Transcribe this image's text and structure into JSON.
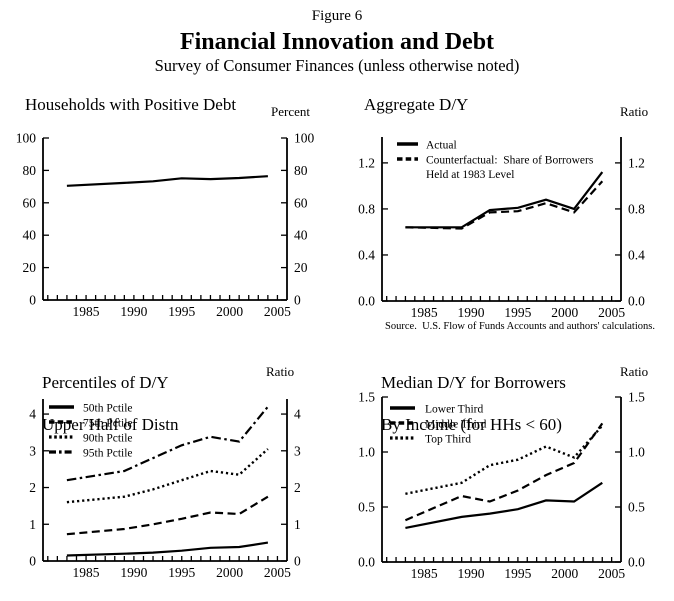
{
  "header": {
    "figure_label": "Figure 6",
    "title": "Financial Innovation and Debt",
    "subtitle": "Survey of Consumer Finances (unless otherwise noted)"
  },
  "colors": {
    "background": "#ffffff",
    "line": "#000000",
    "text": "#000000"
  },
  "chart_data": [
    {
      "type": "line",
      "title": "Households with Positive Debt",
      "title_lines": [
        "Households with Positive Debt"
      ],
      "unit": "Percent",
      "x": [
        1983,
        1989,
        1992,
        1995,
        1998,
        2001,
        2004
      ],
      "xlim": [
        1980.5,
        2006
      ],
      "xtick_label_years": [
        1985,
        1990,
        1995,
        2000,
        2005
      ],
      "ylim": [
        0,
        100
      ],
      "ytick_values": [
        0,
        20,
        40,
        60,
        80,
        100
      ],
      "ytick_labels": [
        "0",
        "20",
        "40",
        "60",
        "80",
        "100"
      ],
      "grid": false,
      "series": [
        {
          "style": "solid",
          "values": [
            70.5,
            72.3,
            73.3,
            75.1,
            74.6,
            75.3,
            76.4
          ]
        }
      ]
    },
    {
      "type": "line",
      "title": "Aggregate D/Y",
      "title_lines": [
        "Aggregate D/Y"
      ],
      "unit": "Ratio",
      "source": "Source.  U.S. Flow of Funds Accounts and authors' calculations.",
      "x": [
        1983,
        1989,
        1992,
        1995,
        1998,
        2001,
        2004
      ],
      "xlim": [
        1980.5,
        2006
      ],
      "xtick_label_years": [
        1985,
        1990,
        1995,
        2000,
        2005
      ],
      "ylim": [
        0,
        1.425
      ],
      "ytick_values": [
        0,
        0.4,
        0.8,
        1.2
      ],
      "ytick_labels": [
        "0.0",
        "0.4",
        "0.8",
        "1.2"
      ],
      "grid": false,
      "legend_position": "top-left",
      "series": [
        {
          "name": "Actual",
          "name_lines": [
            "Actual"
          ],
          "style": "solid",
          "values": [
            0.64,
            0.64,
            0.79,
            0.81,
            0.88,
            0.8,
            1.12
          ]
        },
        {
          "name": "Counterfactual:  Share of Borrowers Held at 1983 Level",
          "name_lines": [
            "Counterfactual:  Share of Borrowers",
            "Held at 1983 Level"
          ],
          "style": "dashed",
          "values": [
            0.64,
            0.63,
            0.77,
            0.78,
            0.85,
            0.77,
            1.04
          ]
        }
      ]
    },
    {
      "type": "line",
      "title": "Percentiles of D/Y Upper Half of Distn",
      "title_lines": [
        "Percentiles of D/Y",
        "Upper Half of Distn"
      ],
      "unit": "Ratio",
      "x": [
        1983,
        1989,
        1992,
        1995,
        1998,
        2001,
        2004
      ],
      "xlim": [
        1980.5,
        2006
      ],
      "xtick_label_years": [
        1985,
        1990,
        1995,
        2000,
        2005
      ],
      "ylim": [
        0,
        4.41
      ],
      "ytick_values": [
        0,
        1,
        2,
        3,
        4
      ],
      "ytick_labels": [
        "0",
        "1",
        "2",
        "3",
        "4"
      ],
      "grid": false,
      "legend_position": "top-left",
      "series": [
        {
          "name": "50th Pctile",
          "name_lines": [
            "50th Pctile"
          ],
          "style": "solid",
          "values": [
            0.15,
            0.2,
            0.23,
            0.28,
            0.36,
            0.38,
            0.5
          ]
        },
        {
          "name": "75th Pctile",
          "name_lines": [
            "75th Pctile"
          ],
          "style": "dashed",
          "values": [
            0.73,
            0.87,
            1.0,
            1.15,
            1.32,
            1.28,
            1.75
          ]
        },
        {
          "name": "90th Pctile",
          "name_lines": [
            "90th Pctile"
          ],
          "style": "dotted",
          "values": [
            1.6,
            1.75,
            1.95,
            2.2,
            2.45,
            2.35,
            3.05
          ]
        },
        {
          "name": "95th Pctile",
          "name_lines": [
            "95th Pctile"
          ],
          "style": "dashdot",
          "values": [
            2.2,
            2.45,
            2.8,
            3.15,
            3.38,
            3.25,
            4.2
          ]
        }
      ]
    },
    {
      "type": "line",
      "title": "Median D/Y for Borrowers By Income (for HHs < 60)",
      "title_lines": [
        "Median D/Y for Borrowers",
        "By Income (for HHs < 60)"
      ],
      "unit": "Ratio",
      "x": [
        1983,
        1989,
        1992,
        1995,
        1998,
        2001,
        2004
      ],
      "xlim": [
        1980.5,
        2006
      ],
      "xtick_label_years": [
        1985,
        1990,
        1995,
        2000,
        2005
      ],
      "ylim": [
        0,
        1.5
      ],
      "ytick_values": [
        0,
        0.5,
        1.0,
        1.5
      ],
      "ytick_labels": [
        "0.0",
        "0.5",
        "1.0",
        "1.5"
      ],
      "grid": false,
      "legend_position": "top-left",
      "series": [
        {
          "name": "Lower Third",
          "name_lines": [
            "Lower Third"
          ],
          "style": "solid",
          "values": [
            0.31,
            0.41,
            0.44,
            0.48,
            0.56,
            0.55,
            0.72
          ]
        },
        {
          "name": "Middle Third",
          "name_lines": [
            "Middle Third"
          ],
          "style": "dashed",
          "values": [
            0.38,
            0.6,
            0.55,
            0.65,
            0.79,
            0.9,
            1.26
          ]
        },
        {
          "name": "Top Third",
          "name_lines": [
            "Top Third"
          ],
          "style": "dotted",
          "values": [
            0.62,
            0.72,
            0.88,
            0.93,
            1.05,
            0.95,
            1.24
          ]
        }
      ]
    }
  ]
}
